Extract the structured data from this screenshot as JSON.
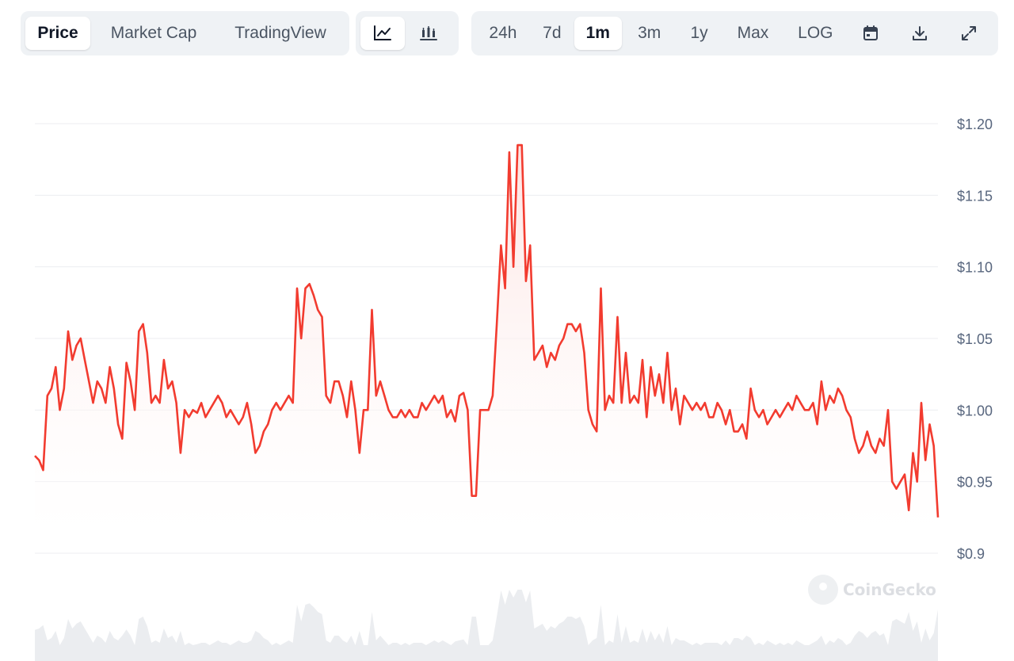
{
  "toolbar": {
    "type_tabs": [
      {
        "label": "Price",
        "active": true
      },
      {
        "label": "Market Cap",
        "active": false
      },
      {
        "label": "TradingView",
        "active": false
      }
    ],
    "chart_modes": [
      {
        "icon": "line-chart-icon",
        "active": true
      },
      {
        "icon": "candlestick-chart-icon",
        "active": false
      }
    ],
    "ranges": [
      {
        "label": "24h",
        "active": false
      },
      {
        "label": "7d",
        "active": false
      },
      {
        "label": "1m",
        "active": true
      },
      {
        "label": "3m",
        "active": false
      },
      {
        "label": "1y",
        "active": false
      },
      {
        "label": "Max",
        "active": false
      },
      {
        "label": "LOG",
        "active": false
      }
    ],
    "actions": [
      {
        "icon": "calendar-icon"
      },
      {
        "icon": "download-icon"
      },
      {
        "icon": "expand-icon"
      }
    ]
  },
  "watermark": "CoinGecko",
  "colors": {
    "line": "#f23b2f",
    "fill_top": "#fde2e0",
    "grid": "#eceef1",
    "axis_text": "#58667e",
    "volume": "#e6e8ec"
  },
  "chart_data": {
    "type": "line",
    "ylim": [
      0.9,
      1.2
    ],
    "y_ticks": [
      "$1.20",
      "$1.15",
      "$1.10",
      "$1.05",
      "$1.00",
      "$0.95",
      "$0.9"
    ],
    "y_tick_values": [
      1.2,
      1.15,
      1.1,
      1.05,
      1.0,
      0.95,
      0.9
    ],
    "series": [
      {
        "values": [
          0.968,
          0.965,
          0.958,
          1.01,
          1.015,
          1.03,
          1.0,
          1.015,
          1.055,
          1.035,
          1.045,
          1.05,
          1.035,
          1.02,
          1.005,
          1.02,
          1.015,
          1.005,
          1.03,
          1.015,
          0.99,
          0.98,
          1.033,
          1.02,
          1.0,
          1.055,
          1.06,
          1.04,
          1.005,
          1.01,
          1.005,
          1.035,
          1.015,
          1.02,
          1.005,
          0.97,
          1.0,
          0.995,
          1.0,
          0.998,
          1.005,
          0.995,
          1.0,
          1.005,
          1.01,
          1.005,
          0.995,
          1.0,
          0.995,
          0.99,
          0.995,
          1.005,
          0.99,
          0.97,
          0.975,
          0.985,
          0.99,
          1.0,
          1.005,
          1.0,
          1.005,
          1.01,
          1.005,
          1.085,
          1.05,
          1.085,
          1.088,
          1.08,
          1.07,
          1.065,
          1.01,
          1.005,
          1.02,
          1.02,
          1.01,
          0.995,
          1.02,
          1.0,
          0.97,
          1.0,
          1.0,
          1.07,
          1.01,
          1.02,
          1.01,
          1.0,
          0.995,
          0.995,
          1.0,
          0.995,
          1.0,
          0.995,
          0.995,
          1.005,
          1.0,
          1.005,
          1.01,
          1.005,
          1.01,
          0.995,
          1.0,
          0.992,
          1.01,
          1.012,
          1.0,
          0.94,
          0.94,
          1.0,
          1.0,
          1.0,
          1.01,
          1.06,
          1.115,
          1.085,
          1.18,
          1.1,
          1.185,
          1.185,
          1.09,
          1.115,
          1.035,
          1.04,
          1.045,
          1.03,
          1.04,
          1.035,
          1.045,
          1.05,
          1.06,
          1.06,
          1.055,
          1.06,
          1.04,
          1.0,
          0.99,
          0.985,
          1.085,
          1.0,
          1.01,
          1.005,
          1.065,
          1.005,
          1.04,
          1.005,
          1.01,
          1.005,
          1.035,
          0.995,
          1.03,
          1.01,
          1.025,
          1.005,
          1.04,
          1.0,
          1.015,
          0.99,
          1.01,
          1.005,
          1.0,
          1.005,
          1.0,
          1.005,
          0.995,
          0.995,
          1.005,
          1.0,
          0.99,
          1.0,
          0.985,
          0.985,
          0.99,
          0.98,
          1.015,
          1.0,
          0.995,
          1.0,
          0.99,
          0.995,
          1.0,
          0.995,
          1.0,
          1.005,
          1.0,
          1.01,
          1.005,
          1.0,
          1.0,
          1.005,
          0.99,
          1.02,
          1.0,
          1.01,
          1.005,
          1.015,
          1.01,
          1.0,
          0.995,
          0.98,
          0.97,
          0.975,
          0.985,
          0.975,
          0.97,
          0.98,
          0.975,
          1.0,
          0.95,
          0.945,
          0.95,
          0.955,
          0.93,
          0.97,
          0.95,
          1.005,
          0.965,
          0.99,
          0.975,
          0.925
        ]
      }
    ],
    "grid": true,
    "legend": "none"
  }
}
